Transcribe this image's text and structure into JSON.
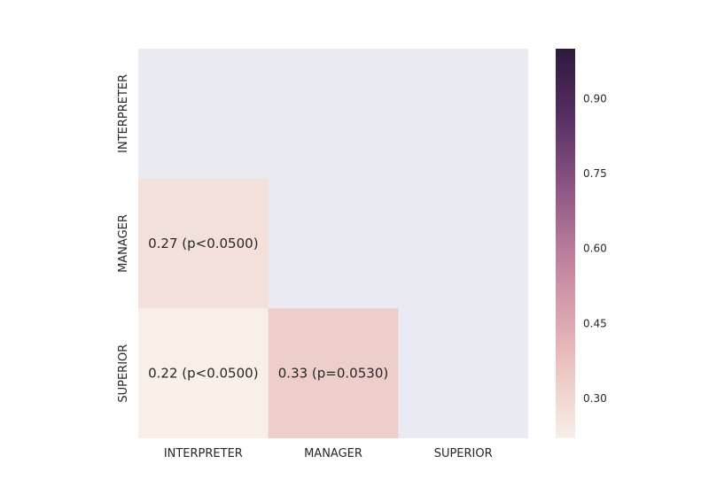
{
  "chart_data": {
    "type": "heatmap",
    "title": "",
    "rows": [
      "INTERPRETER",
      "MANAGER",
      "SUPERIOR"
    ],
    "columns": [
      "INTERPRETER",
      "MANAGER",
      "SUPERIOR"
    ],
    "values": [
      [
        null,
        null,
        null
      ],
      [
        0.27,
        null,
        null
      ],
      [
        0.22,
        0.33,
        null
      ]
    ],
    "annotations": [
      [
        "",
        "",
        ""
      ],
      [
        "0.27 (p<0.0500)",
        "",
        ""
      ],
      [
        "0.22 (p<0.0500)",
        "0.33 (p=0.0530)",
        ""
      ]
    ],
    "colorbar": {
      "range": [
        0.22,
        1.0
      ],
      "ticks": [
        0.3,
        0.45,
        0.6,
        0.75,
        0.9
      ],
      "tick_labels": [
        "0.30",
        "0.45",
        "0.60",
        "0.75",
        "0.90"
      ]
    },
    "colors": {
      "masked_background": "#eaeaf2",
      "colormap": [
        "#f8efe9",
        "#ecc8c3",
        "#d89fab",
        "#b6789a",
        "#86507f",
        "#552d63",
        "#2d1a3c"
      ]
    }
  }
}
